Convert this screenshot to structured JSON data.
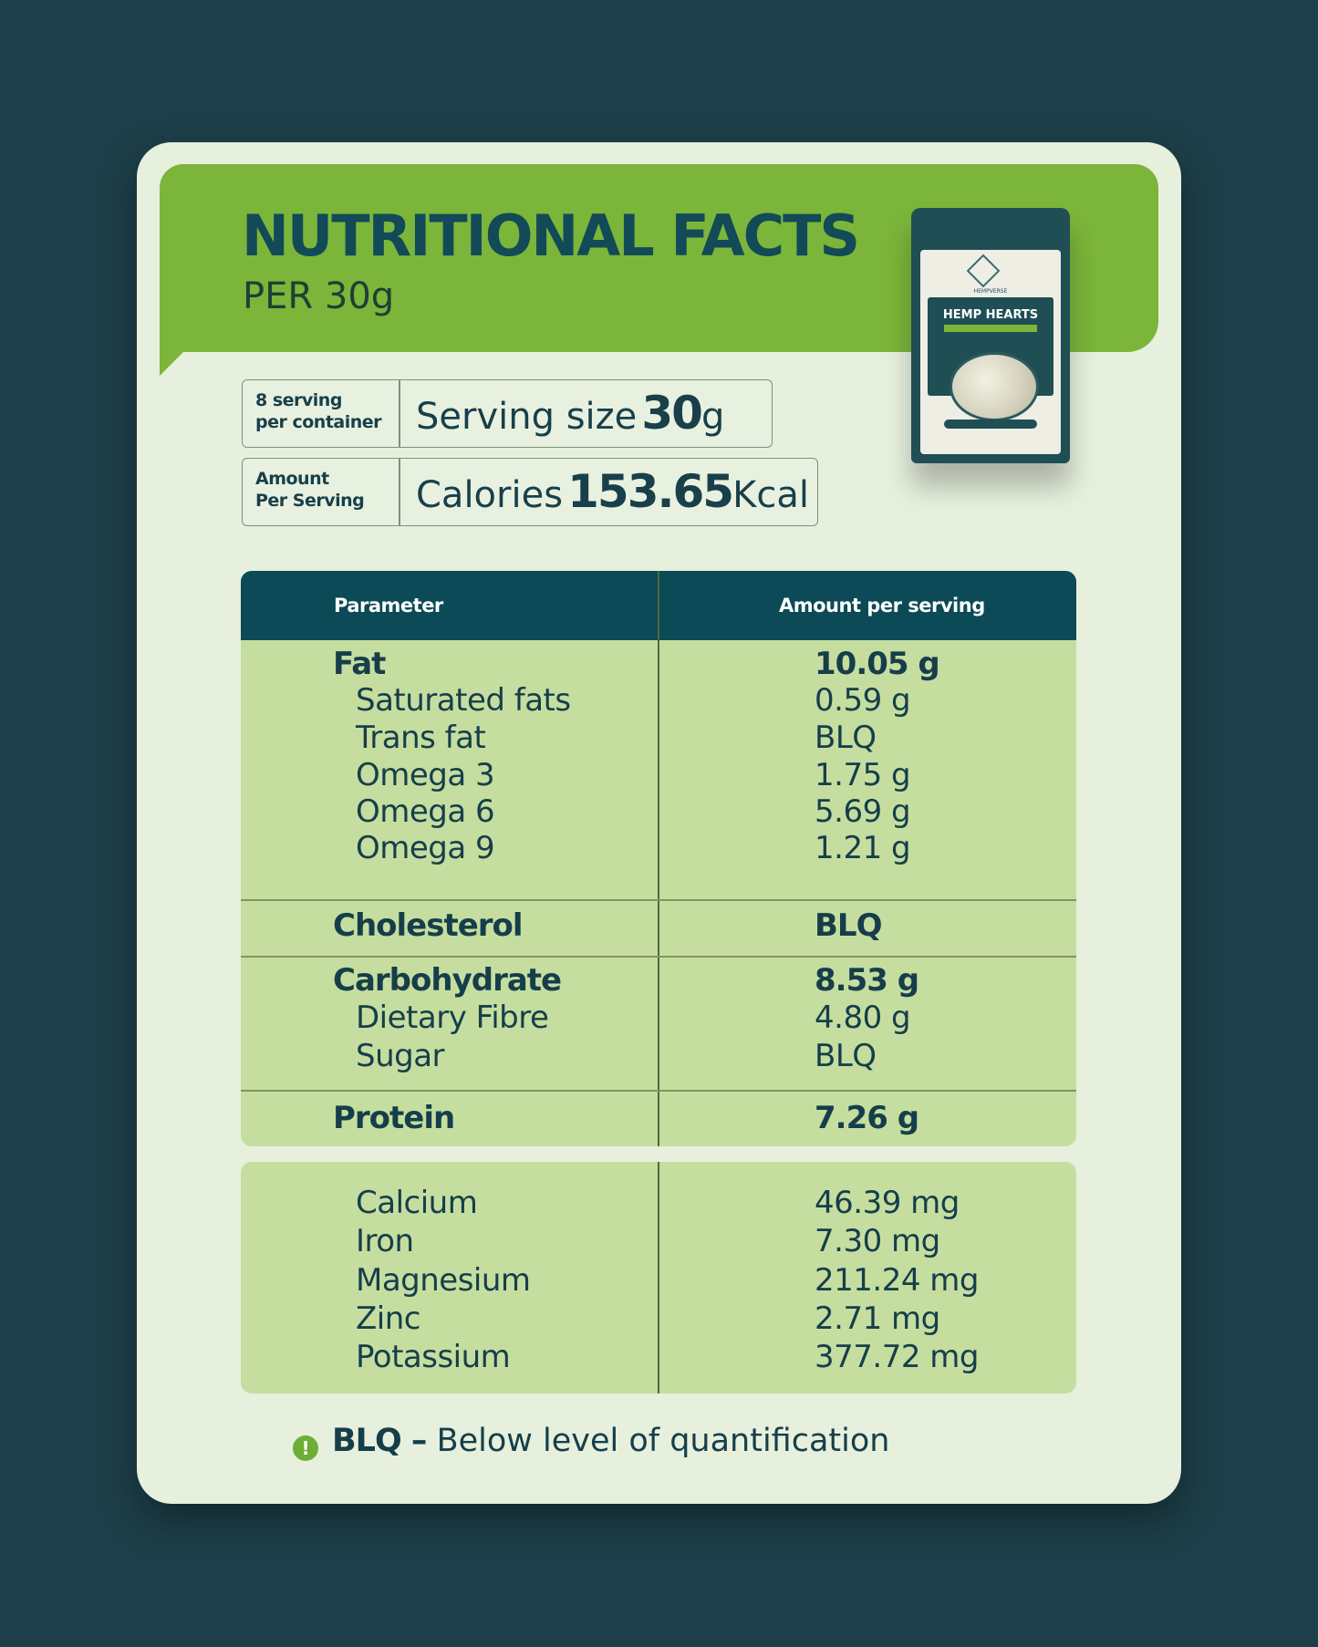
{
  "header": {
    "title": "NUTRITIONAL FACTS",
    "subtitle": "PER 30g"
  },
  "product": {
    "brand": "HEMPVERSE",
    "name": "HEMP HEARTS"
  },
  "serving": {
    "label_line1": "8 serving",
    "label_line2": "per container",
    "text": "Serving size",
    "value": "30",
    "unit": "g"
  },
  "calories": {
    "label_line1": "Amount",
    "label_line2": "Per Serving",
    "text": "Calories",
    "value": "153.65",
    "unit": "Kcal"
  },
  "table": {
    "col_parameter": "Parameter",
    "col_amount": "Amount per serving",
    "rows": [
      {
        "name": "Fat",
        "value": "10.05 g",
        "bold": true
      },
      {
        "name": "Saturated fats",
        "value": "0.59 g"
      },
      {
        "name": "Trans fat",
        "value": "BLQ"
      },
      {
        "name": "Omega 3",
        "value": "1.75 g"
      },
      {
        "name": "Omega 6",
        "value": "5.69 g"
      },
      {
        "name": "Omega 9",
        "value": "1.21 g"
      },
      {
        "name": "Cholesterol",
        "value": "BLQ",
        "bold": true
      },
      {
        "name": "Carbohydrate",
        "value": "8.53 g",
        "bold": true
      },
      {
        "name": "Dietary Fibre",
        "value": "4.80 g"
      },
      {
        "name": "Sugar",
        "value": "BLQ"
      },
      {
        "name": "Protein",
        "value": "7.26 g",
        "bold": true
      }
    ]
  },
  "minerals": [
    {
      "name": "Calcium",
      "value": "46.39 mg"
    },
    {
      "name": "Iron",
      "value": "7.30 mg"
    },
    {
      "name": "Magnesium",
      "value": "211.24 mg"
    },
    {
      "name": "Zinc",
      "value": "2.71 mg"
    },
    {
      "name": "Potassium",
      "value": "377.72 mg"
    }
  ],
  "footnote": {
    "icon": "exclamation-icon",
    "term": "BLQ –",
    "definition": "Below level of quantification"
  },
  "colors": {
    "background": "#1d3f49",
    "card": "#e6f0dd",
    "banner": "#7bb53a",
    "table_header": "#0b4a56",
    "table_body": "#c5dea0",
    "text": "#163e4a"
  }
}
